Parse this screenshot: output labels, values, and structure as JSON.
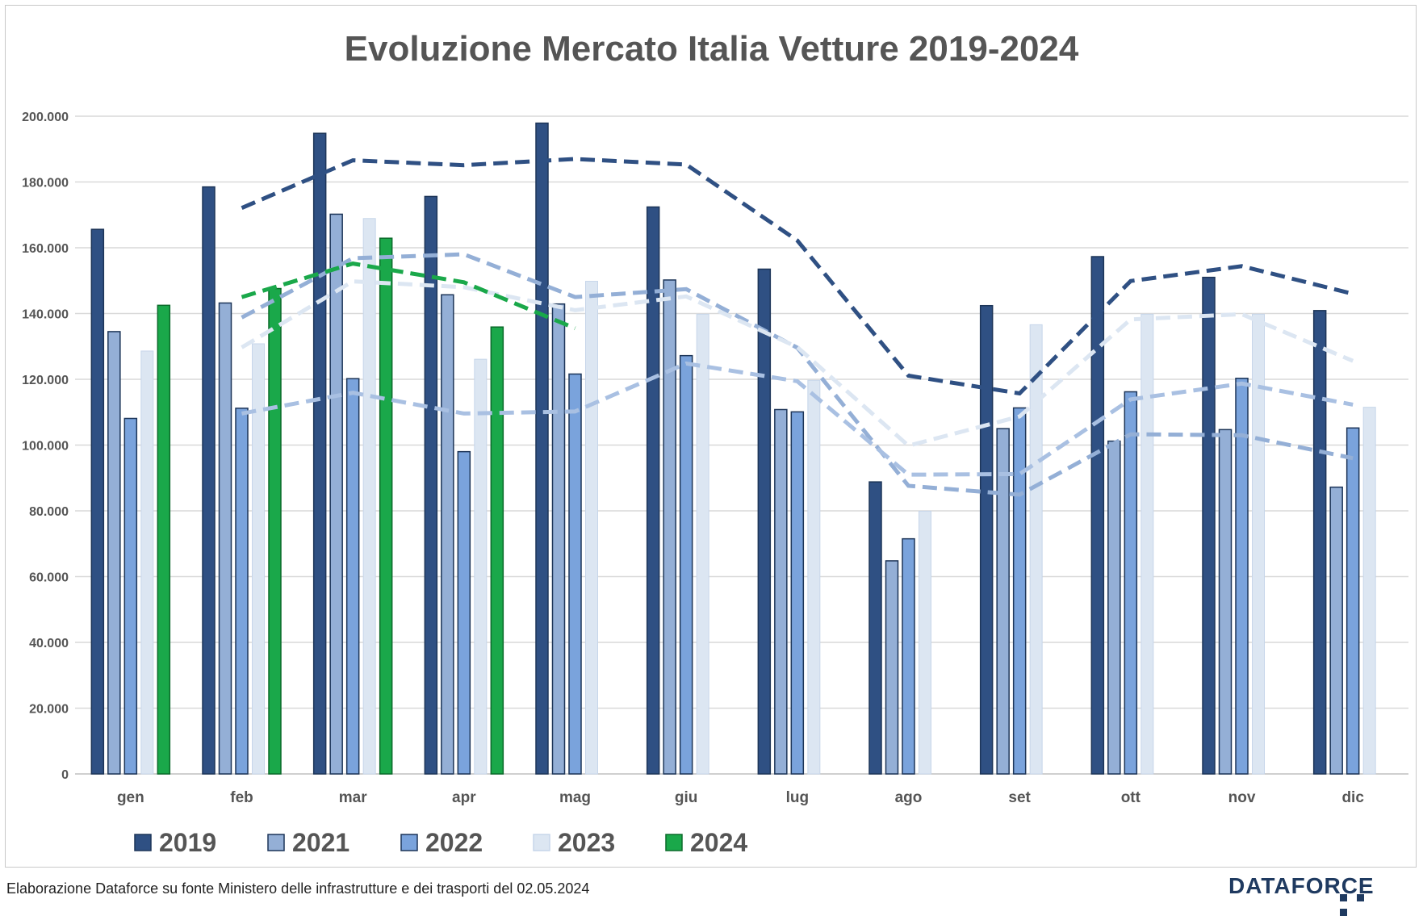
{
  "chart_data": {
    "type": "bar",
    "title": "Evoluzione Mercato Italia Vetture 2019-2024",
    "categories": [
      "gen",
      "feb",
      "mar",
      "apr",
      "mag",
      "giu",
      "lug",
      "ago",
      "set",
      "ott",
      "nov",
      "dic"
    ],
    "ylim": [
      0,
      200000
    ],
    "yticks": [
      "0",
      "20.000",
      "40.000",
      "60.000",
      "80.000",
      "100.000",
      "120.000",
      "140.000",
      "160.000",
      "180.000",
      "200.000"
    ],
    "grid": true,
    "legend_position": "bottom",
    "series": [
      {
        "name": "2019",
        "color": "#2f5083",
        "values": [
          165600,
          178500,
          194800,
          175600,
          197900,
          172400,
          153500,
          88800,
          142400,
          157300,
          151000,
          140900
        ]
      },
      {
        "name": "2021",
        "color": "#94afd6",
        "values": [
          134500,
          143200,
          170200,
          145700,
          142900,
          150200,
          110800,
          64800,
          105000,
          101200,
          104700,
          87200
        ]
      },
      {
        "name": "2022",
        "color": "#7aa3dc",
        "values": [
          108100,
          111200,
          120200,
          98000,
          121600,
          127200,
          110100,
          71500,
          111300,
          116200,
          120300,
          105200
        ]
      },
      {
        "name": "2023",
        "color": "#dce6f2",
        "values": [
          128600,
          130800,
          168900,
          126100,
          149800,
          139800,
          119700,
          79900,
          136600,
          139800,
          139800,
          111500
        ]
      },
      {
        "name": "2024",
        "color": "#1aa84a",
        "values": [
          142500,
          147600,
          162900,
          135900,
          null,
          null,
          null,
          null,
          null,
          null,
          null,
          null
        ]
      }
    ],
    "trendlines": [
      {
        "series": "2019",
        "style": "dashed",
        "values": [
          null,
          172100,
          186600,
          185100,
          187000,
          185300,
          162200,
          121100,
          115700,
          149900,
          154400,
          146000
        ]
      },
      {
        "series": "2021",
        "style": "dashed",
        "values": [
          null,
          138800,
          156800,
          158000,
          145000,
          147400,
          129600,
          87600,
          84900,
          103300,
          103000,
          96000
        ]
      },
      {
        "series": "2022",
        "style": "dashed",
        "values": [
          null,
          109600,
          115900,
          109600,
          110200,
          124800,
          119400,
          91000,
          91200,
          113900,
          118700,
          112300
        ]
      },
      {
        "series": "2023",
        "style": "dashed",
        "values": [
          null,
          129700,
          149800,
          148000,
          141000,
          145200,
          129800,
          99800,
          108700,
          138200,
          139800,
          125600
        ]
      },
      {
        "series": "2024",
        "style": "dashed",
        "values": [
          null,
          145000,
          155200,
          149500,
          135500,
          null,
          null,
          null,
          null,
          null,
          null,
          null
        ]
      }
    ]
  },
  "footer": {
    "note": "Elaborazione Dataforce su fonte Ministero delle infrastrutture e dei trasporti del 02.05.2024",
    "brand": "DATAFORCE"
  }
}
